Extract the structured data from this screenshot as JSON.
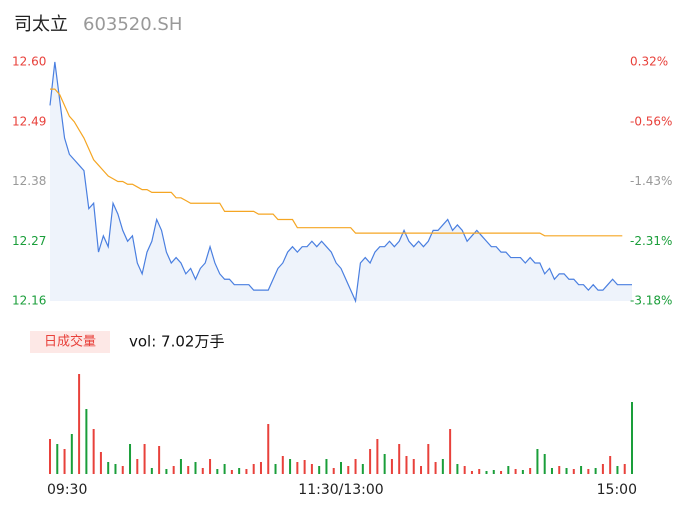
{
  "header": {
    "name": "司太立",
    "code": "603520.SH"
  },
  "chart_data": {
    "type": "intraday",
    "price": {
      "x": [
        0,
        2,
        4,
        6,
        8,
        10,
        12,
        14,
        16,
        18,
        20,
        22,
        24,
        26,
        28,
        30,
        32,
        34,
        36,
        38,
        40,
        42,
        44,
        46,
        48,
        50,
        52,
        54,
        56,
        58,
        60,
        62,
        64,
        66,
        68,
        70,
        72,
        74,
        76,
        78,
        80,
        82,
        84,
        86,
        88,
        90,
        92,
        94,
        96,
        98,
        100,
        102,
        104,
        106,
        108,
        110,
        112,
        114,
        116,
        118,
        120,
        122,
        124,
        126,
        128,
        130,
        132,
        134,
        136,
        138,
        140,
        142,
        144,
        146,
        148,
        150,
        152,
        154,
        156,
        158,
        160,
        162,
        164,
        166,
        168,
        170,
        172,
        174,
        176,
        178,
        180,
        182,
        184,
        186,
        188,
        190,
        192,
        194,
        196,
        198,
        200,
        202,
        204,
        206,
        208,
        210,
        212,
        214,
        216,
        218,
        220,
        222,
        224,
        226,
        228,
        230,
        232,
        234,
        236,
        238,
        240
      ],
      "values": [
        12.52,
        12.6,
        12.53,
        12.46,
        12.43,
        12.42,
        12.41,
        12.4,
        12.33,
        12.34,
        12.25,
        12.28,
        12.26,
        12.34,
        12.32,
        12.29,
        12.27,
        12.28,
        12.23,
        12.21,
        12.25,
        12.27,
        12.31,
        12.29,
        12.25,
        12.23,
        12.24,
        12.23,
        12.21,
        12.22,
        12.2,
        12.22,
        12.23,
        12.26,
        12.23,
        12.21,
        12.2,
        12.2,
        12.19,
        12.19,
        12.19,
        12.19,
        12.18,
        12.18,
        12.18,
        12.18,
        12.2,
        12.22,
        12.23,
        12.25,
        12.26,
        12.25,
        12.26,
        12.26,
        12.27,
        12.26,
        12.27,
        12.26,
        12.25,
        12.23,
        12.22,
        12.2,
        12.18,
        12.16,
        12.23,
        12.24,
        12.23,
        12.25,
        12.26,
        12.26,
        12.27,
        12.26,
        12.27,
        12.29,
        12.27,
        12.26,
        12.27,
        12.26,
        12.27,
        12.29,
        12.29,
        12.3,
        12.31,
        12.29,
        12.3,
        12.29,
        12.27,
        12.28,
        12.29,
        12.28,
        12.27,
        12.26,
        12.26,
        12.25,
        12.25,
        12.24,
        12.24,
        12.24,
        12.23,
        12.24,
        12.23,
        12.23,
        12.21,
        12.22,
        12.2,
        12.21,
        12.21,
        12.2,
        12.2,
        12.19,
        12.19,
        12.18,
        12.19,
        12.18,
        12.18,
        12.19,
        12.2,
        12.19,
        12.19,
        12.19,
        12.19
      ],
      "average": [
        12.55,
        12.55,
        12.54,
        12.52,
        12.5,
        12.49,
        12.475,
        12.46,
        12.44,
        12.42,
        12.41,
        12.4,
        12.39,
        12.385,
        12.38,
        12.38,
        12.375,
        12.375,
        12.37,
        12.365,
        12.365,
        12.36,
        12.36,
        12.36,
        12.36,
        12.36,
        12.35,
        12.35,
        12.345,
        12.34,
        12.34,
        12.34,
        12.34,
        12.34,
        12.34,
        12.34,
        12.325,
        12.325,
        12.325,
        12.325,
        12.325,
        12.325,
        12.325,
        12.32,
        12.32,
        12.32,
        12.32,
        12.31,
        12.31,
        12.31,
        12.31,
        12.295,
        12.295,
        12.295,
        12.295,
        12.295,
        12.295,
        12.295,
        12.295,
        12.295,
        12.295,
        12.295,
        12.295,
        12.285,
        12.285,
        12.285,
        12.285,
        12.285,
        12.285,
        12.285,
        12.285,
        12.285,
        12.285,
        12.285,
        12.285,
        12.285,
        12.285,
        12.285,
        12.285,
        12.285,
        12.285,
        12.285,
        12.285,
        12.285,
        12.285,
        12.285,
        12.285,
        12.285,
        12.285,
        12.285,
        12.285,
        12.285,
        12.285,
        12.285,
        12.285,
        12.285,
        12.285,
        12.285,
        12.285,
        12.285,
        12.285,
        12.285,
        12.28,
        12.28,
        12.28,
        12.28,
        12.28,
        12.28,
        12.28,
        12.28,
        12.28,
        12.28,
        12.28,
        12.28,
        12.28,
        12.28,
        12.28,
        12.28,
        12.28
      ],
      "color": "#4a7fe0",
      "area_color": "#eef3fb",
      "average_color": "#f5a623"
    },
    "xlim": [
      0,
      240
    ],
    "xticks": [
      {
        "value": 0,
        "label": "09:30"
      },
      {
        "value": 120,
        "label": "11:30/13:00"
      },
      {
        "value": 240,
        "label": "15:00"
      }
    ],
    "ylim": [
      12.16,
      12.6
    ],
    "yticks": [
      {
        "value": 12.16,
        "label": "12.16"
      },
      12.27,
      12.38,
      12.49,
      {
        "value": 12.6,
        "label": "12.60"
      }
    ],
    "y2lim": [
      -3.18,
      0.32
    ],
    "y2ticks": [
      {
        "value": -3.18,
        "label": "-3.18%"
      },
      {
        "value": -2.31,
        "label": "-2.31%"
      },
      {
        "value": -1.43,
        "label": "-1.43%"
      },
      {
        "value": -0.56,
        "label": "-0.56%"
      },
      {
        "value": 0.32,
        "label": "0.32%"
      }
    ],
    "tick_colors": [
      "#1a9e3a",
      "#1a9e3a",
      "#999999",
      "#e8413b",
      "#e8413b"
    ],
    "volume": {
      "label": "日成交量",
      "summary": "vol: 7.02万手",
      "x": [
        0,
        3,
        6,
        9,
        12,
        15,
        18,
        21,
        24,
        27,
        30,
        33,
        36,
        39,
        42,
        45,
        48,
        51,
        54,
        57,
        60,
        63,
        66,
        69,
        72,
        75,
        78,
        81,
        84,
        87,
        90,
        93,
        96,
        99,
        102,
        105,
        108,
        111,
        114,
        117,
        120,
        123,
        126,
        129,
        132,
        135,
        138,
        141,
        144,
        147,
        150,
        153,
        156,
        159,
        162,
        165,
        168,
        171,
        174,
        177,
        180,
        183,
        186,
        189,
        192,
        195,
        198,
        201,
        204,
        207,
        210,
        213,
        216,
        219,
        222,
        225,
        228,
        231,
        234,
        237,
        240
      ],
      "values": [
        350,
        300,
        250,
        400,
        1000,
        650,
        450,
        220,
        120,
        100,
        80,
        300,
        150,
        300,
        60,
        280,
        50,
        80,
        150,
        80,
        120,
        60,
        150,
        50,
        100,
        40,
        60,
        50,
        100,
        120,
        500,
        100,
        180,
        150,
        120,
        140,
        100,
        80,
        150,
        60,
        120,
        80,
        150,
        100,
        250,
        350,
        200,
        150,
        300,
        180,
        150,
        80,
        300,
        120,
        150,
        450,
        100,
        80,
        30,
        50,
        30,
        40,
        30,
        80,
        50,
        40,
        60,
        250,
        200,
        60,
        80,
        60,
        50,
        80,
        50,
        60,
        100,
        180,
        80,
        100,
        720
      ],
      "directions": [
        "up",
        "down",
        "up",
        "down",
        "up",
        "down",
        "up",
        "up",
        "down",
        "down",
        "up",
        "down",
        "up",
        "up",
        "down",
        "up",
        "down",
        "up",
        "down",
        "up",
        "down",
        "up",
        "up",
        "down",
        "down",
        "up",
        "down",
        "up",
        "up",
        "up",
        "up",
        "down",
        "up",
        "down",
        "up",
        "up",
        "up",
        "down",
        "down",
        "up",
        "down",
        "up",
        "up",
        "down",
        "up",
        "up",
        "down",
        "up",
        "up",
        "up",
        "up",
        "up",
        "up",
        "up",
        "down",
        "up",
        "down",
        "up",
        "up",
        "up",
        "down",
        "down",
        "up",
        "down",
        "up",
        "down",
        "up",
        "down",
        "down",
        "down",
        "up",
        "down",
        "up",
        "down",
        "up",
        "down",
        "up",
        "up",
        "down",
        "up",
        "down"
      ],
      "vlim": [
        0,
        1000
      ],
      "up_color": "#e8413b",
      "down_color": "#1a9e3a"
    }
  }
}
